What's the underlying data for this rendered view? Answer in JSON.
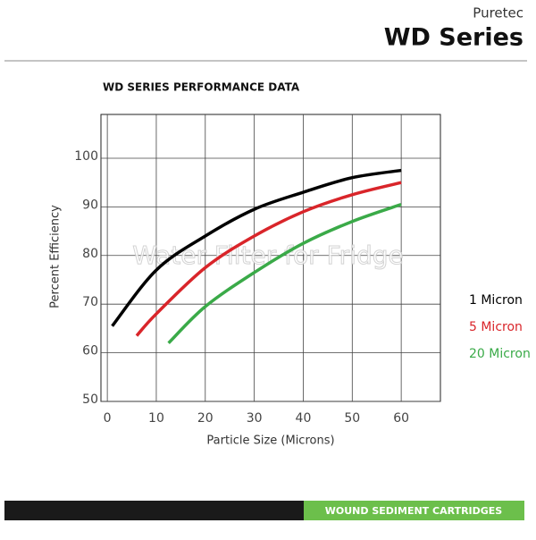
{
  "header": {
    "brand": "Puretec",
    "title": "WD Series"
  },
  "chart_data": {
    "type": "line",
    "title": "WD SERIES PERFORMANCE DATA",
    "x_label": "Particle Size (Microns)",
    "y_label": "Percent  Efficiency",
    "watermark": "Water Filter for Fridge",
    "xlim": [
      -1.3,
      68
    ],
    "xticks": [
      0,
      10,
      20,
      30,
      40,
      50,
      60
    ],
    "ylim": [
      50,
      109
    ],
    "yticks": [
      50,
      60,
      70,
      80,
      90,
      100
    ],
    "grid": true,
    "series": [
      {
        "name": "1 Micron",
        "color": "#000000",
        "x": [
          1,
          10,
          20,
          30,
          40,
          50,
          60
        ],
        "values": [
          65.5,
          77,
          84,
          89.5,
          93,
          96,
          97.5
        ]
      },
      {
        "name": "5 Micron",
        "color": "#d9252a",
        "x": [
          6,
          10,
          20,
          30,
          40,
          50,
          60
        ],
        "values": [
          63.5,
          68,
          77.5,
          84,
          89,
          92.5,
          95
        ]
      },
      {
        "name": "20 Micron",
        "color": "#3aaa48",
        "x": [
          12.5,
          20,
          30,
          40,
          50,
          60
        ],
        "values": [
          62,
          69.5,
          76.5,
          82.5,
          87,
          90.5
        ]
      }
    ]
  },
  "footer": {
    "label": "WOUND SEDIMENT CARTRIDGES"
  }
}
